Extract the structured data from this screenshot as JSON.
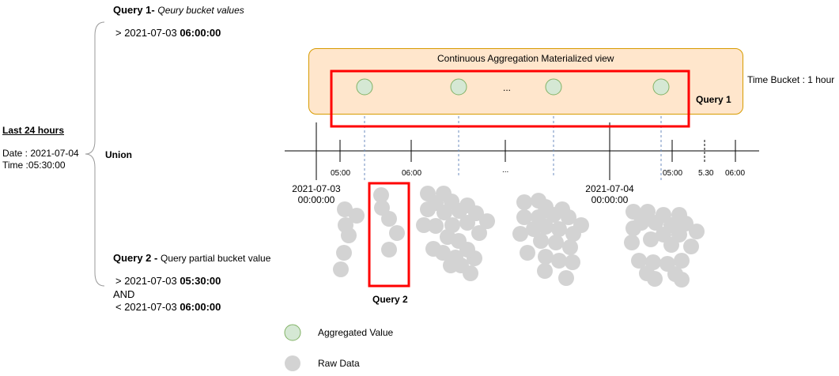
{
  "query1": {
    "title": "Query 1-",
    "subtitle": "Qeury bucket values",
    "cond_prefix": "> 2021-07-03",
    "cond_time": "06:00:00"
  },
  "left": {
    "range": "Last 24 hours",
    "date": "Date : 2021-07-04",
    "time": "Time :05:30:00",
    "union": "Union"
  },
  "query2": {
    "title": "Query 2 -",
    "subtitle": "Query partial bucket value",
    "cond1_prefix": "> 2021-07-03",
    "cond1_time": "05:30:00",
    "and": "AND",
    "cond2_prefix": "< 2021-07-03",
    "cond2_time": "06:00:00"
  },
  "cagg": {
    "title": "Continuous Aggregation Materialized view",
    "ellipsis": "...",
    "bucket_label": "Time Bucket : 1 hour",
    "query1_label": "Query 1"
  },
  "timeline": {
    "ticks": [
      "05:00",
      "06:00",
      "...",
      "05:00",
      "5.30",
      "06:00"
    ],
    "date1_day": "2021-07-03",
    "date1_time": "00:00:00",
    "date2_day": "2021-07-04",
    "date2_time": "00:00:00"
  },
  "query2_label": "Query 2",
  "legend": {
    "aggregated": "Aggregated Value",
    "raw": "Raw Data"
  },
  "colors": {
    "agg_fill": "#d5e8d4",
    "agg_stroke": "#82b366",
    "raw_fill": "#d3d3d3",
    "highlight": "#ff0000",
    "cagg_fill": "#ffe6cc",
    "cagg_stroke": "#d79b00",
    "arrow": "#6c8ebf"
  }
}
